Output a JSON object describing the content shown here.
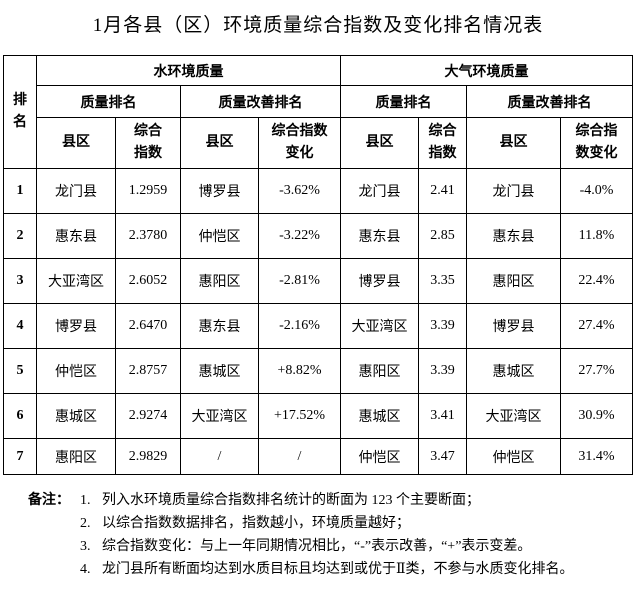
{
  "title": "1月各县（区）环境质量综合指数及变化排名情况表",
  "table": {
    "rank_header": "排名",
    "groups": [
      "水环境质量",
      "大气环境质量"
    ],
    "subgroups": [
      "质量排名",
      "质量改善排名",
      "质量排名",
      "质量改善排名"
    ],
    "columns": [
      "县区",
      "综合指数",
      "县区",
      "综合指数变化",
      "县区",
      "综合指数",
      "县区",
      "综合指数变化"
    ],
    "rows": [
      [
        "1",
        "龙门县",
        "1.2959",
        "博罗县",
        "-3.62%",
        "龙门县",
        "2.41",
        "龙门县",
        "-4.0%"
      ],
      [
        "2",
        "惠东县",
        "2.3780",
        "仲恺区",
        "-3.22%",
        "惠东县",
        "2.85",
        "惠东县",
        "11.8%"
      ],
      [
        "3",
        "大亚湾区",
        "2.6052",
        "惠阳区",
        "-2.81%",
        "博罗县",
        "3.35",
        "惠阳区",
        "22.4%"
      ],
      [
        "4",
        "博罗县",
        "2.6470",
        "惠东县",
        "-2.16%",
        "大亚湾区",
        "3.39",
        "博罗县",
        "27.4%"
      ],
      [
        "5",
        "仲恺区",
        "2.8757",
        "惠城区",
        "+8.82%",
        "惠阳区",
        "3.39",
        "惠城区",
        "27.7%"
      ],
      [
        "6",
        "惠城区",
        "2.9274",
        "大亚湾区",
        "+17.52%",
        "惠城区",
        "3.41",
        "大亚湾区",
        "30.9%"
      ],
      [
        "7",
        "惠阳区",
        "2.9829",
        "/",
        "/",
        "仲恺区",
        "3.47",
        "仲恺区",
        "31.4%"
      ]
    ]
  },
  "notes": {
    "label": "备注：",
    "items": [
      {
        "number": "1.",
        "text": "列入水环境质量综合指数排名统计的断面为 123 个主要断面；"
      },
      {
        "number": "2.",
        "text": "以综合指数数据排名，指数越小，环境质量越好；"
      },
      {
        "number": "3.",
        "text": "综合指数变化：与上一年同期情况相比，“-”表示改善，“+”表示变差。"
      },
      {
        "number": "4.",
        "text": "龙门县所有断面均达到水质目标且均达到或优于Ⅱ类，不参与水质变化排名。"
      }
    ]
  }
}
